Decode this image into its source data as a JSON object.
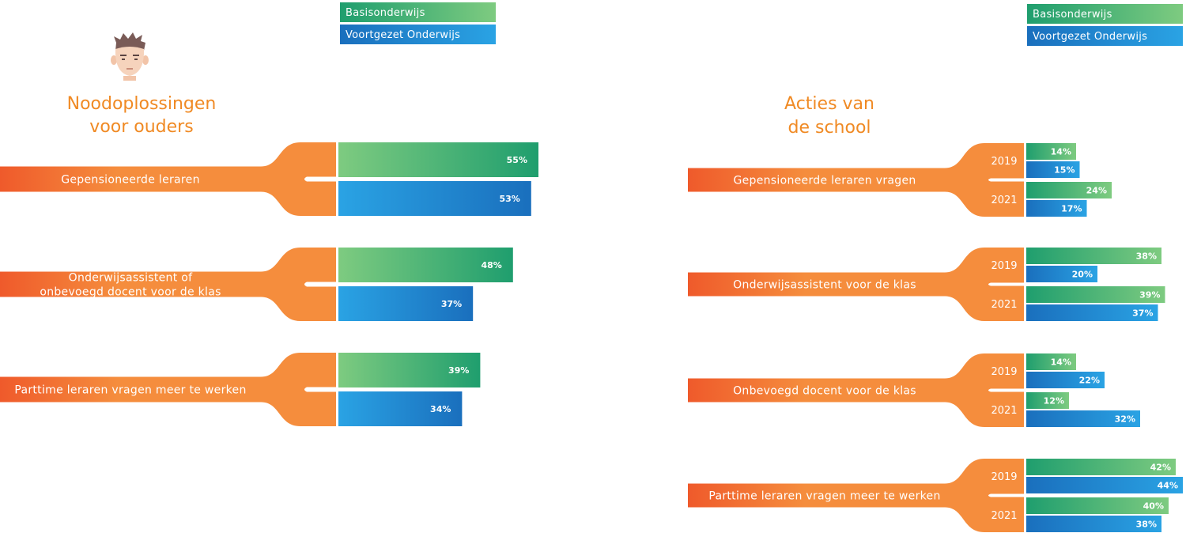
{
  "colors": {
    "green": "#1f9e6e",
    "green_light": "#7ecb80",
    "blue": "#1a6fbd",
    "blue_light": "#2aa3e4",
    "orange": "#f58d3d",
    "orange_dark": "#ef5a2b",
    "title": "#f08a24"
  },
  "legend": [
    "Basisonderwijs",
    "Voortgezet Onderwijs"
  ],
  "chart_data": [
    {
      "type": "bar",
      "title": "Noodoplossingen voor ouders",
      "title_lines": [
        "Noodoplossingen",
        "voor ouders"
      ],
      "categories": [
        "Gepensioneerde leraren",
        "Onderwijsassistent of onbevoegd docent voor de klas",
        "Parttime leraren vragen meer te werken"
      ],
      "category_lines": [
        [
          "Gepensioneerde leraren"
        ],
        [
          "Onderwijsassistent of",
          "onbevoegd docent voor de klas"
        ],
        [
          "Parttime leraren vragen meer te werken"
        ]
      ],
      "series": [
        {
          "name": "Basisonderwijs",
          "values": [
            55,
            48,
            39
          ],
          "labels": [
            "55%",
            "48%",
            "39%"
          ]
        },
        {
          "name": "Voortgezet Onderwijs",
          "values": [
            53,
            37,
            34
          ],
          "labels": [
            "53%",
            "37%",
            "34%"
          ]
        }
      ]
    },
    {
      "type": "bar",
      "title": "Acties van de school",
      "title_lines": [
        "Acties van",
        "de school"
      ],
      "years": [
        "2019",
        "2021"
      ],
      "categories": [
        "Gepensioneerde leraren vragen",
        "Onderwijsassistent voor de klas",
        "Onbevoegd docent voor de klas",
        "Parttime leraren vragen meer te werken"
      ],
      "series": [
        {
          "name": "Basisonderwijs",
          "year": "2019",
          "values": [
            14,
            38,
            14,
            42
          ],
          "labels": [
            "14%",
            "38%",
            "14%",
            "42%"
          ]
        },
        {
          "name": "Voortgezet Onderwijs",
          "year": "2019",
          "values": [
            15,
            20,
            22,
            44
          ],
          "labels": [
            "15%",
            "20%",
            "22%",
            "44%"
          ]
        },
        {
          "name": "Basisonderwijs",
          "year": "2021",
          "values": [
            24,
            39,
            12,
            40
          ],
          "labels": [
            "24%",
            "39%",
            "12%",
            "40%"
          ]
        },
        {
          "name": "Voortgezet Onderwijs",
          "year": "2021",
          "values": [
            17,
            37,
            32,
            38
          ],
          "labels": [
            "17%",
            "37%",
            "32%",
            "38%"
          ]
        }
      ]
    }
  ]
}
